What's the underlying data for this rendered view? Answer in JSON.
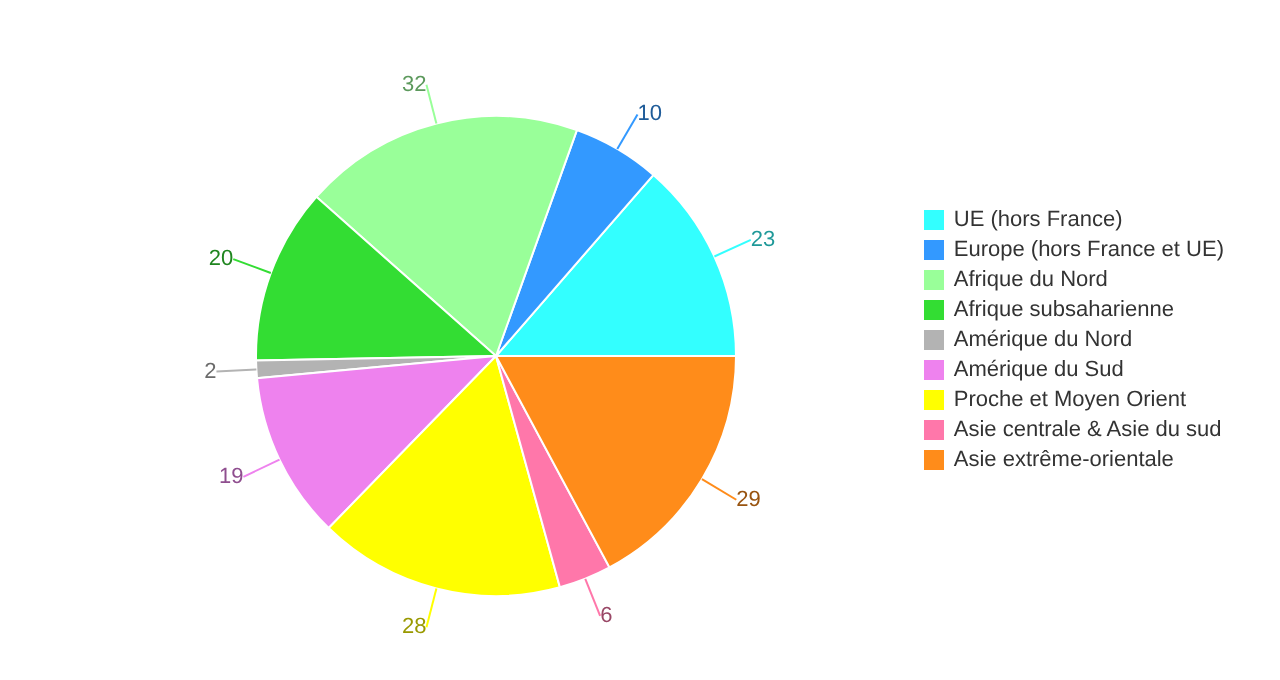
{
  "chart_data": {
    "type": "pie",
    "categories": [
      "UE (hors France)",
      "Europe (hors France et UE)",
      "Afrique du Nord",
      "Afrique subsaharienne",
      "Amérique du Nord",
      "Amérique du Sud",
      "Proche et Moyen Orient",
      "Asie centrale & Asie du sud",
      "Asie extrême-orientale"
    ],
    "values": [
      23,
      10,
      32,
      20,
      2,
      19,
      28,
      6,
      29
    ],
    "colors": [
      "#33ffff",
      "#3399ff",
      "#99ff99",
      "#33dd33",
      "#b3b3b3",
      "#ee82ee",
      "#ffff00",
      "#ff77aa",
      "#ff8c1a"
    ],
    "data_labels": true,
    "legend": "right"
  }
}
